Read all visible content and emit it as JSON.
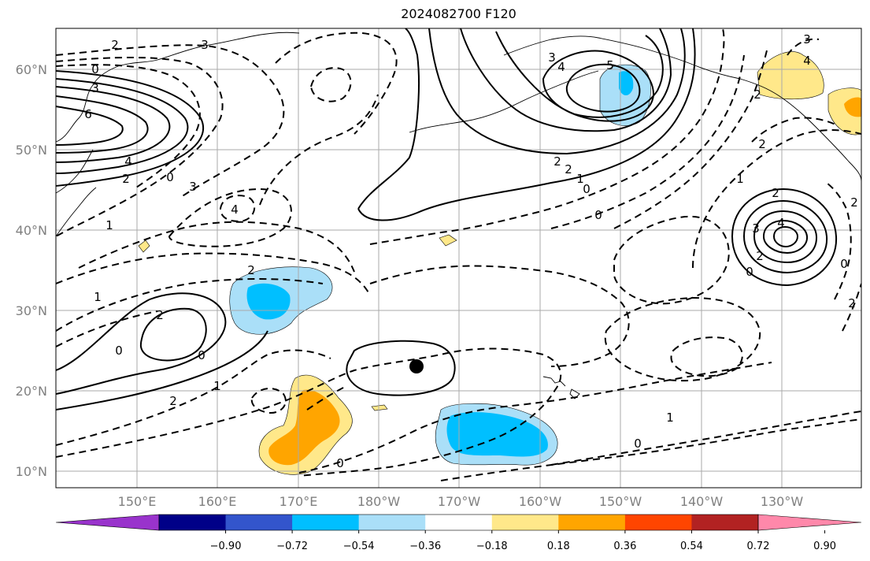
{
  "title": "2024082700 F120",
  "lat_labels": [
    "60°N",
    "50°N",
    "40°N",
    "30°N",
    "20°N",
    "10°N"
  ],
  "lon_labels": [
    "150°E",
    "160°E",
    "170°E",
    "180°W",
    "170°W",
    "160°W",
    "150°W",
    "140°W",
    "130°W"
  ],
  "colorbar": {
    "colors": [
      "#9933cc",
      "#000088",
      "#3355cc",
      "#00bfff",
      "#aadff8",
      "#ffffff",
      "#ffe88a",
      "#ffa500",
      "#ff4500",
      "#b22222",
      "#ff88aa"
    ],
    "tick_labels": [
      "−0.90",
      "−0.72",
      "−0.54",
      "−0.36",
      "−0.18",
      "0.18",
      "0.36",
      "0.54",
      "0.72",
      "0.90"
    ]
  },
  "contour_labels": [
    {
      "text": "2"
    },
    {
      "text": "3"
    },
    {
      "text": "0"
    },
    {
      "text": "3"
    },
    {
      "text": "6"
    },
    {
      "text": "4"
    },
    {
      "text": "2"
    },
    {
      "text": "0"
    },
    {
      "text": "3"
    },
    {
      "text": "4"
    },
    {
      "text": "1"
    },
    {
      "text": "2"
    },
    {
      "text": "1"
    },
    {
      "text": "2"
    },
    {
      "text": "0"
    },
    {
      "text": "0"
    },
    {
      "text": "1"
    },
    {
      "text": "2"
    },
    {
      "text": "3"
    },
    {
      "text": "4"
    },
    {
      "text": "5"
    },
    {
      "text": "2"
    },
    {
      "text": "2"
    },
    {
      "text": "1"
    },
    {
      "text": "0"
    },
    {
      "text": "0"
    },
    {
      "text": "3"
    },
    {
      "text": "4"
    },
    {
      "text": "2"
    },
    {
      "text": "2"
    },
    {
      "text": "1"
    },
    {
      "text": "2"
    },
    {
      "text": "3"
    },
    {
      "text": "4"
    },
    {
      "text": "2"
    },
    {
      "text": "0"
    },
    {
      "text": "0"
    },
    {
      "text": "2"
    },
    {
      "text": "2"
    },
    {
      "text": "1"
    },
    {
      "text": "0"
    },
    {
      "text": "0"
    }
  ],
  "marker": "filled-black-circle"
}
